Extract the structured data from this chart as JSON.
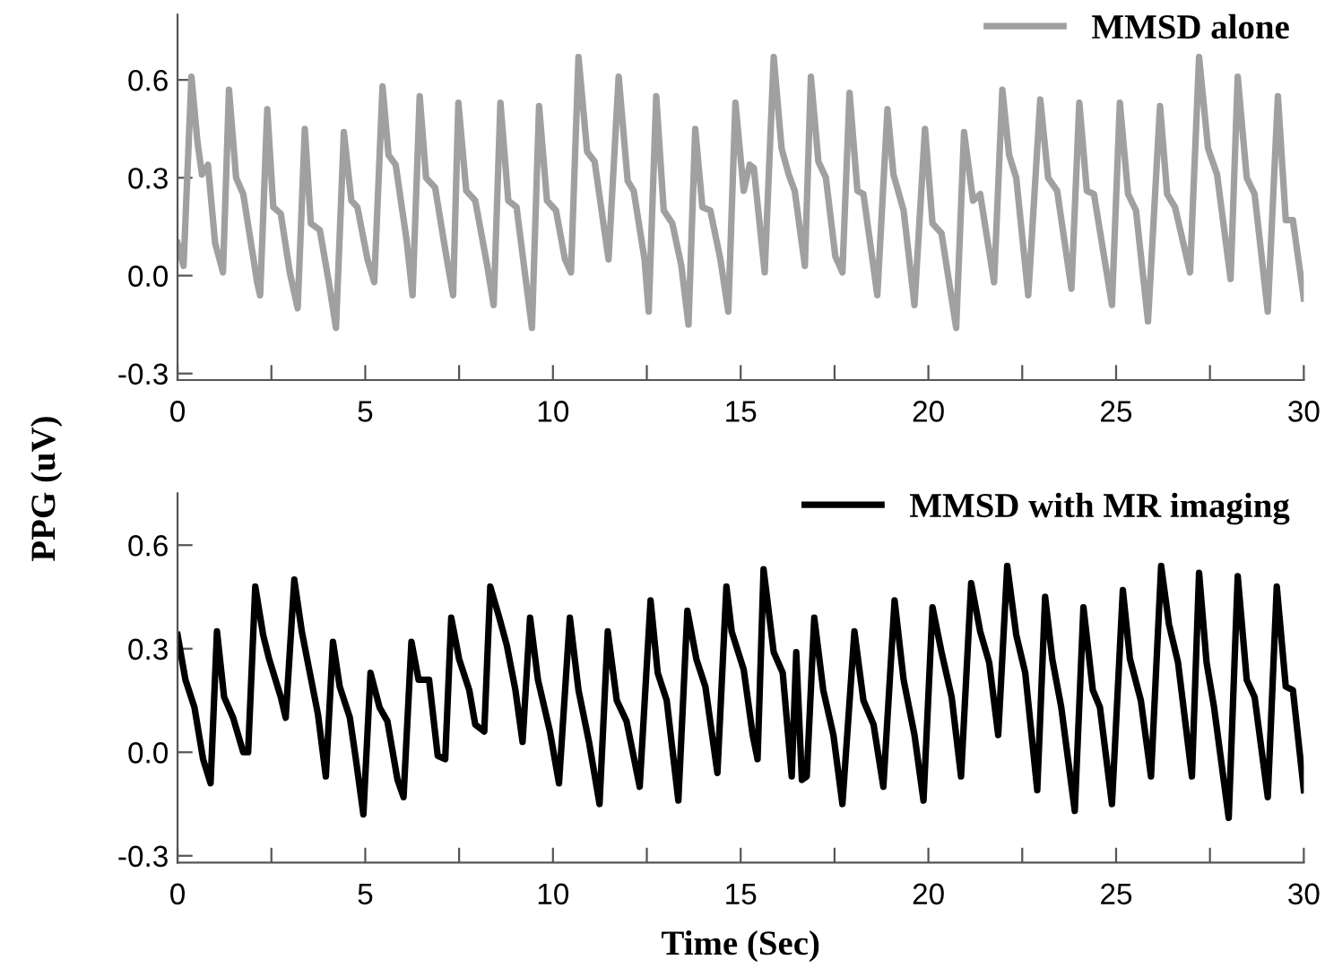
{
  "chart_data": [
    {
      "type": "line",
      "ylabel": "PPG (uV)",
      "legend": "top right",
      "grid": false,
      "xlim": [
        0,
        30
      ],
      "ylim": [
        -0.32,
        0.8
      ],
      "xticks": [
        0,
        {
          "value": 2.5,
          "label": null
        },
        5,
        {
          "value": 7.5,
          "label": null
        },
        10,
        {
          "value": 12.5,
          "label": null
        },
        15,
        {
          "value": 17.5,
          "label": null
        },
        20,
        {
          "value": 22.5,
          "label": null
        },
        25,
        {
          "value": 27.5,
          "label": null
        },
        30
      ],
      "yticks": [
        {
          "value": -0.3,
          "label": "-0.3"
        },
        {
          "value": 0,
          "label": "0.0"
        },
        {
          "value": 0.3,
          "label": "0.3"
        },
        {
          "value": 0.6,
          "label": "0.6"
        }
      ],
      "series": [
        {
          "name": "MMSD alone",
          "color": "#a0a0a0",
          "x": [
            0,
            0.16,
            0.37,
            0.53,
            0.65,
            0.81,
            1.0,
            1.21,
            1.37,
            1.56,
            1.75,
            2.12,
            2.2,
            2.39,
            2.55,
            2.75,
            2.99,
            3.2,
            3.39,
            3.55,
            3.79,
            4.03,
            4.22,
            4.43,
            4.63,
            4.79,
            5.06,
            5.24,
            5.46,
            5.62,
            5.81,
            6.1,
            6.26,
            6.45,
            6.62,
            6.86,
            7.13,
            7.34,
            7.48,
            7.69,
            7.93,
            8.25,
            8.42,
            8.6,
            8.81,
            9.03,
            9.25,
            9.44,
            9.63,
            9.84,
            10.08,
            10.32,
            10.48,
            10.68,
            10.91,
            11.11,
            11.48,
            11.75,
            11.99,
            12.15,
            12.44,
            12.55,
            12.75,
            12.95,
            13.18,
            13.42,
            13.61,
            13.79,
            13.98,
            14.19,
            14.46,
            14.67,
            14.86,
            15.08,
            15.24,
            15.35,
            15.64,
            15.88,
            16.09,
            16.28,
            16.44,
            16.71,
            16.87,
            17.07,
            17.27,
            17.52,
            17.71,
            17.9,
            18.11,
            18.27,
            18.64,
            18.91,
            19.07,
            19.34,
            19.63,
            19.91,
            20.11,
            20.35,
            20.74,
            20.95,
            21.19,
            21.38,
            21.75,
            21.97,
            22.15,
            22.34,
            22.66,
            22.98,
            23.19,
            23.43,
            23.81,
            24.02,
            24.22,
            24.41,
            24.89,
            25.1,
            25.32,
            25.53,
            25.85,
            26.17,
            26.36,
            26.57,
            26.97,
            27.21,
            27.45,
            27.69,
            28.05,
            28.24,
            28.48,
            28.69,
            29.04,
            29.31,
            29.52,
            29.71,
            30.0
          ],
          "values": [
            0.1,
            0.03,
            0.61,
            0.41,
            0.31,
            0.34,
            0.1,
            0.01,
            0.57,
            0.3,
            0.25,
            -0.02,
            -0.06,
            0.51,
            0.21,
            0.19,
            0.01,
            -0.1,
            0.45,
            0.16,
            0.14,
            -0.02,
            -0.16,
            0.44,
            0.23,
            0.21,
            0.05,
            -0.02,
            0.58,
            0.37,
            0.34,
            0.11,
            -0.06,
            0.55,
            0.3,
            0.27,
            0.08,
            -0.06,
            0.53,
            0.26,
            0.23,
            0.03,
            -0.09,
            0.53,
            0.23,
            0.21,
            0.01,
            -0.16,
            0.52,
            0.23,
            0.2,
            0.05,
            0.01,
            0.67,
            0.38,
            0.35,
            0.05,
            0.61,
            0.29,
            0.26,
            0.05,
            -0.11,
            0.55,
            0.2,
            0.16,
            0.03,
            -0.15,
            0.45,
            0.21,
            0.2,
            0.05,
            -0.11,
            0.53,
            0.26,
            0.34,
            0.33,
            0.01,
            0.67,
            0.39,
            0.31,
            0.26,
            0.03,
            0.61,
            0.35,
            0.3,
            0.06,
            0.01,
            0.56,
            0.26,
            0.25,
            -0.06,
            0.51,
            0.31,
            0.2,
            -0.09,
            0.45,
            0.16,
            0.13,
            -0.16,
            0.44,
            0.23,
            0.25,
            -0.02,
            0.57,
            0.37,
            0.3,
            -0.06,
            0.54,
            0.3,
            0.26,
            -0.04,
            0.53,
            0.26,
            0.25,
            -0.09,
            0.53,
            0.25,
            0.2,
            -0.14,
            0.52,
            0.25,
            0.21,
            0.01,
            0.67,
            0.39,
            0.31,
            -0.01,
            0.61,
            0.3,
            0.25,
            -0.11,
            0.55,
            0.17,
            0.17,
            -0.07
          ]
        }
      ]
    },
    {
      "type": "line",
      "xlabel": "Time (Sec)",
      "legend": "top right",
      "grid": false,
      "xlim": [
        0,
        30
      ],
      "ylim": [
        -0.32,
        0.75
      ],
      "xticks": [
        0,
        {
          "value": 2.5,
          "label": null
        },
        5,
        {
          "value": 7.5,
          "label": null
        },
        10,
        {
          "value": 12.5,
          "label": null
        },
        15,
        {
          "value": 17.5,
          "label": null
        },
        20,
        {
          "value": 22.5,
          "label": null
        },
        25,
        {
          "value": 27.5,
          "label": null
        },
        30
      ],
      "yticks": [
        {
          "value": -0.3,
          "label": "-0.3"
        },
        {
          "value": 0,
          "label": "0.0"
        },
        {
          "value": 0.3,
          "label": "0.3"
        },
        {
          "value": 0.6,
          "label": "0.6"
        }
      ],
      "series": [
        {
          "name": "MMSD with MR imaging",
          "color": "#000000",
          "x": [
            0,
            0.21,
            0.45,
            0.68,
            0.88,
            1.05,
            1.24,
            1.48,
            1.75,
            1.88,
            2.07,
            2.28,
            2.44,
            2.75,
            2.88,
            3.11,
            3.31,
            3.47,
            3.74,
            3.95,
            4.14,
            4.32,
            4.59,
            4.75,
            4.95,
            5.14,
            5.38,
            5.59,
            5.86,
            6.02,
            6.23,
            6.42,
            6.7,
            6.93,
            7.13,
            7.29,
            7.5,
            7.77,
            7.93,
            8.17,
            8.33,
            8.57,
            8.77,
            9.0,
            9.19,
            9.39,
            9.6,
            9.92,
            10.16,
            10.45,
            10.68,
            10.96,
            11.24,
            11.46,
            11.7,
            11.96,
            12.31,
            12.6,
            12.79,
            13.03,
            13.34,
            13.58,
            13.82,
            14.06,
            14.38,
            14.62,
            14.76,
            15.08,
            15.32,
            15.45,
            15.61,
            15.88,
            16.12,
            16.36,
            16.48,
            16.63,
            16.76,
            16.96,
            17.2,
            17.47,
            17.71,
            18.03,
            18.27,
            18.54,
            18.8,
            19.1,
            19.34,
            19.63,
            19.87,
            20.11,
            20.35,
            20.62,
            20.87,
            21.14,
            21.38,
            21.62,
            21.86,
            22.1,
            22.34,
            22.58,
            22.9,
            23.11,
            23.3,
            23.54,
            23.9,
            24.13,
            24.38,
            24.57,
            24.89,
            25.18,
            25.37,
            25.66,
            25.93,
            26.2,
            26.41,
            26.65,
            27.02,
            27.21,
            27.41,
            27.61,
            28.0,
            28.24,
            28.48,
            28.69,
            29.04,
            29.28,
            29.52,
            29.71,
            30.0
          ],
          "values": [
            0.34,
            0.21,
            0.13,
            -0.02,
            -0.09,
            0.35,
            0.16,
            0.1,
            0.0,
            0.0,
            0.48,
            0.34,
            0.27,
            0.16,
            0.1,
            0.5,
            0.35,
            0.26,
            0.11,
            -0.07,
            0.32,
            0.19,
            0.1,
            -0.02,
            -0.18,
            0.23,
            0.13,
            0.09,
            -0.08,
            -0.13,
            0.32,
            0.21,
            0.21,
            -0.01,
            -0.02,
            0.39,
            0.27,
            0.18,
            0.08,
            0.06,
            0.48,
            0.39,
            0.31,
            0.18,
            0.03,
            0.39,
            0.21,
            0.06,
            -0.09,
            0.39,
            0.18,
            0.03,
            -0.15,
            0.35,
            0.15,
            0.09,
            -0.1,
            0.44,
            0.23,
            0.15,
            -0.14,
            0.41,
            0.27,
            0.19,
            -0.06,
            0.48,
            0.35,
            0.24,
            0.05,
            -0.02,
            0.53,
            0.29,
            0.23,
            -0.07,
            0.29,
            -0.08,
            -0.07,
            0.39,
            0.18,
            0.05,
            -0.15,
            0.35,
            0.15,
            0.08,
            -0.1,
            0.44,
            0.21,
            0.05,
            -0.14,
            0.42,
            0.29,
            0.16,
            -0.07,
            0.49,
            0.35,
            0.26,
            0.05,
            0.54,
            0.34,
            0.23,
            -0.11,
            0.45,
            0.27,
            0.13,
            -0.17,
            0.42,
            0.18,
            0.13,
            -0.15,
            0.47,
            0.27,
            0.15,
            -0.07,
            0.54,
            0.37,
            0.26,
            -0.07,
            0.52,
            0.26,
            0.13,
            -0.19,
            0.51,
            0.21,
            0.16,
            -0.13,
            0.48,
            0.19,
            0.18,
            -0.11
          ]
        }
      ]
    }
  ]
}
